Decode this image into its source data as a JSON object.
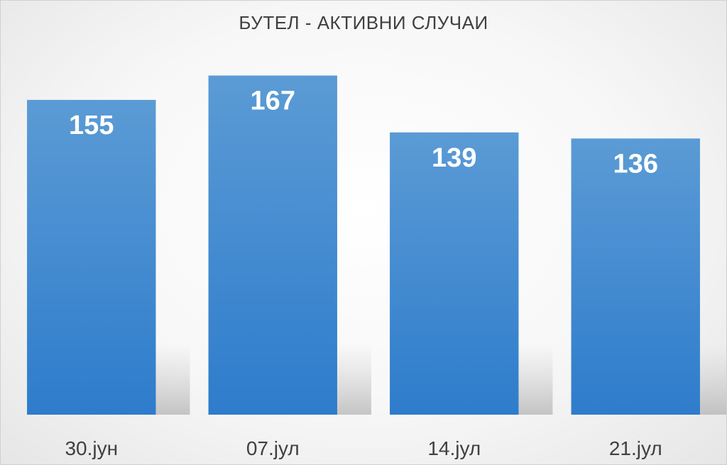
{
  "chart_data": {
    "type": "bar",
    "title": "БУТЕЛ - АКТИВНИ СЛУЧАИ",
    "categories": [
      "30.јун",
      "07.јул",
      "14.јул",
      "21.јул"
    ],
    "values": [
      155,
      167,
      139,
      136
    ],
    "xlabel": "",
    "ylabel": "",
    "ylim": [
      0,
      185
    ],
    "grid": false,
    "legend": "none",
    "data_labels": "inside-top",
    "colors": {
      "bar_top": "#5b9bd5",
      "bar_bottom": "#2e7ccc",
      "label": "#ffffff",
      "text": "#404040"
    }
  }
}
